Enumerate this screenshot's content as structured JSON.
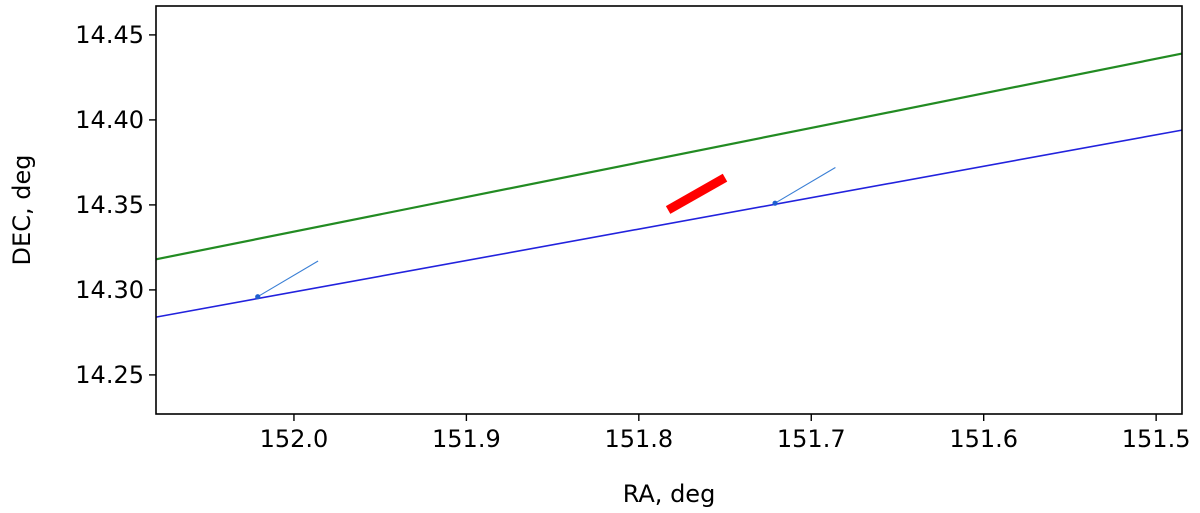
{
  "chart_data": {
    "type": "line",
    "xlabel": "RA, deg",
    "ylabel": "DEC, deg",
    "xlim": [
      152.08,
      151.485
    ],
    "ylim": [
      14.227,
      14.467
    ],
    "x_inverted": true,
    "xticks": [
      152.0,
      151.9,
      151.8,
      151.7,
      151.6,
      151.5
    ],
    "xtick_labels": [
      "152.0",
      "151.9",
      "151.8",
      "151.7",
      "151.6",
      "151.5"
    ],
    "yticks": [
      14.25,
      14.3,
      14.35,
      14.4,
      14.45
    ],
    "ytick_labels": [
      "14.25",
      "14.30",
      "14.35",
      "14.40",
      "14.45"
    ],
    "grid": false,
    "series": [
      {
        "color": "#228B22",
        "x": [
          152.08,
          151.485
        ],
        "y": [
          14.318,
          14.439
        ]
      },
      {
        "color": "#2222dd",
        "x": [
          152.08,
          151.485
        ],
        "y": [
          14.284,
          14.394
        ]
      },
      {
        "color": "#ff0000",
        "x": [
          151.783,
          151.75
        ],
        "y": [
          14.347,
          14.366
        ]
      },
      {
        "color": "#3a7fd5",
        "x": [
          152.021,
          151.986
        ],
        "y": [
          14.296,
          14.317
        ]
      },
      {
        "color": "#3a7fd5",
        "x": [
          151.721,
          151.686
        ],
        "y": [
          14.351,
          14.372
        ]
      }
    ],
    "points": [
      {
        "color": "#1f5fd0",
        "x": 152.021,
        "y": 14.296
      },
      {
        "color": "#1f5fd0",
        "x": 151.721,
        "y": 14.351
      }
    ]
  }
}
